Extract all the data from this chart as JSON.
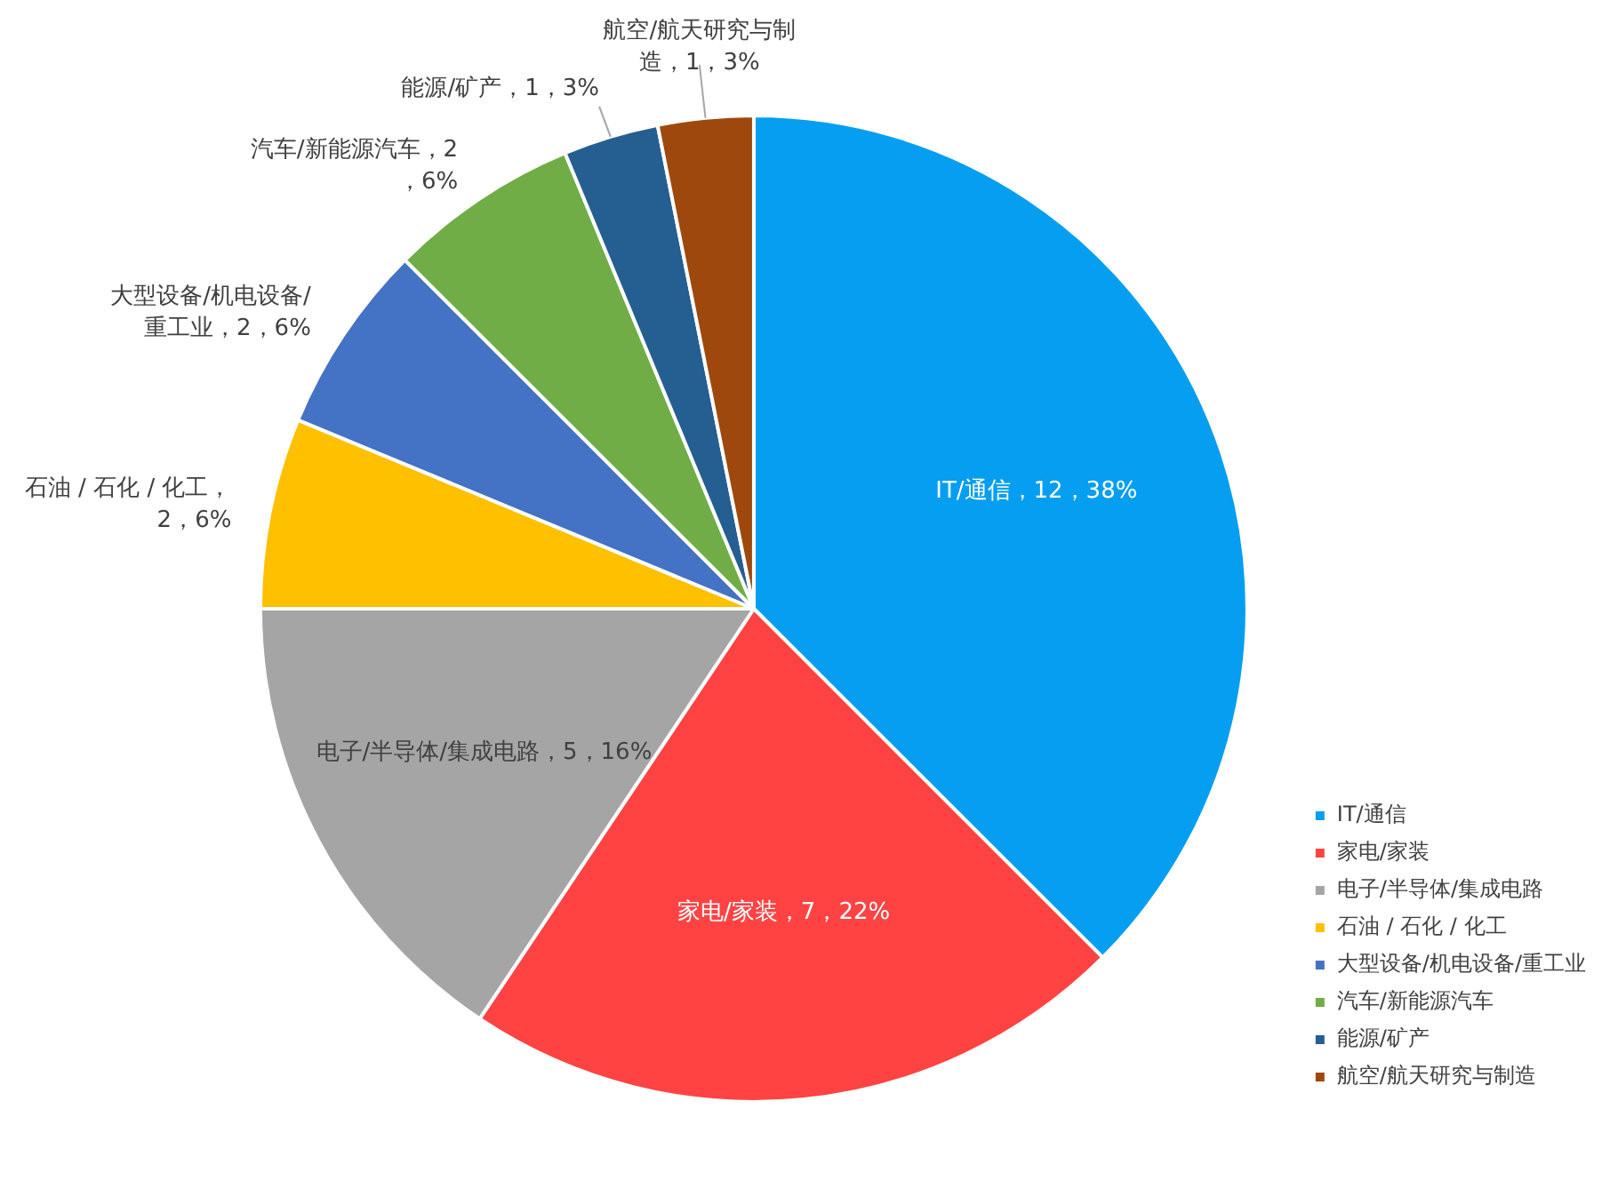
{
  "chart_data": {
    "type": "pie",
    "categories": [
      "IT/通信",
      "家电/家装",
      "电子/半导体/集成电路",
      "石油 / 石化 / 化工",
      "大型设备/机电设备/重工业",
      "汽车/新能源汽车",
      "能源/矿产",
      "航空/航天研究与制造"
    ],
    "values": [
      12,
      7,
      5,
      2,
      2,
      2,
      1,
      1
    ],
    "colors": [
      "#069ef0",
      "#ff4343",
      "#a5a5a5",
      "#ffc000",
      "#4472c4",
      "#70ad47",
      "#255e91",
      "#9e480e"
    ],
    "value_labels": [
      "IT/通信，12，38%",
      "家电/家装，7，22%",
      "电子/半导体/集成电路，5，16%",
      "石油 / 石化 / 化工，2，6%",
      "大型设备/机电设备/重工业，2，6%",
      "汽车/新能源汽车，2，6%",
      "能源/矿产，1，3%",
      "航空/航天研究与制造，1，3%"
    ],
    "legend": "bottom right"
  }
}
